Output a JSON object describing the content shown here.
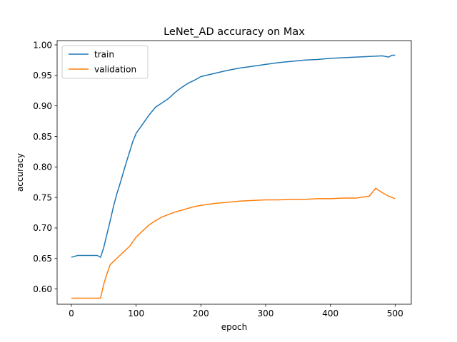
{
  "chart_data": {
    "type": "line",
    "title": "LeNet_AD accuracy on Max",
    "xlabel": "epoch",
    "ylabel": "accuracy",
    "xlim": [
      -22,
      525
    ],
    "ylim": [
      0.575,
      1.007
    ],
    "xticks": [
      0,
      100,
      200,
      300,
      400,
      500
    ],
    "yticks": [
      0.6,
      0.65,
      0.7,
      0.75,
      0.8,
      0.85,
      0.9,
      0.95,
      1.0
    ],
    "xtick_labels": [
      "0",
      "100",
      "200",
      "300",
      "400",
      "500"
    ],
    "ytick_labels": [
      "0.60",
      "0.65",
      "0.70",
      "0.75",
      "0.80",
      "0.85",
      "0.90",
      "0.95",
      "1.00"
    ],
    "grid": false,
    "legend_position": "upper-left",
    "series": [
      {
        "name": "train",
        "color": "#1f77b4",
        "x": [
          0,
          10,
          20,
          30,
          40,
          45,
          50,
          55,
          60,
          65,
          70,
          75,
          80,
          85,
          90,
          95,
          100,
          110,
          120,
          130,
          140,
          150,
          160,
          170,
          180,
          190,
          200,
          220,
          240,
          260,
          280,
          300,
          320,
          340,
          360,
          380,
          400,
          420,
          440,
          460,
          480,
          490,
          495,
          500
        ],
        "y": [
          0.652,
          0.655,
          0.655,
          0.655,
          0.655,
          0.652,
          0.668,
          0.69,
          0.712,
          0.735,
          0.755,
          0.772,
          0.79,
          0.808,
          0.825,
          0.842,
          0.855,
          0.87,
          0.885,
          0.898,
          0.905,
          0.912,
          0.922,
          0.93,
          0.937,
          0.942,
          0.948,
          0.953,
          0.958,
          0.962,
          0.965,
          0.968,
          0.971,
          0.973,
          0.975,
          0.976,
          0.978,
          0.979,
          0.98,
          0.981,
          0.982,
          0.98,
          0.983,
          0.983
        ]
      },
      {
        "name": "validation",
        "color": "#ff7f0e",
        "x": [
          0,
          10,
          20,
          30,
          40,
          45,
          50,
          55,
          60,
          65,
          70,
          80,
          90,
          100,
          110,
          120,
          130,
          140,
          150,
          160,
          170,
          180,
          190,
          200,
          220,
          240,
          260,
          280,
          300,
          320,
          340,
          360,
          380,
          400,
          420,
          440,
          460,
          470,
          480,
          490,
          500
        ],
        "y": [
          0.585,
          0.585,
          0.585,
          0.585,
          0.585,
          0.585,
          0.608,
          0.625,
          0.64,
          0.645,
          0.65,
          0.66,
          0.67,
          0.685,
          0.695,
          0.705,
          0.712,
          0.718,
          0.722,
          0.726,
          0.729,
          0.732,
          0.735,
          0.737,
          0.74,
          0.742,
          0.744,
          0.745,
          0.746,
          0.746,
          0.747,
          0.747,
          0.748,
          0.748,
          0.749,
          0.749,
          0.752,
          0.765,
          0.758,
          0.752,
          0.748
        ]
      }
    ]
  }
}
